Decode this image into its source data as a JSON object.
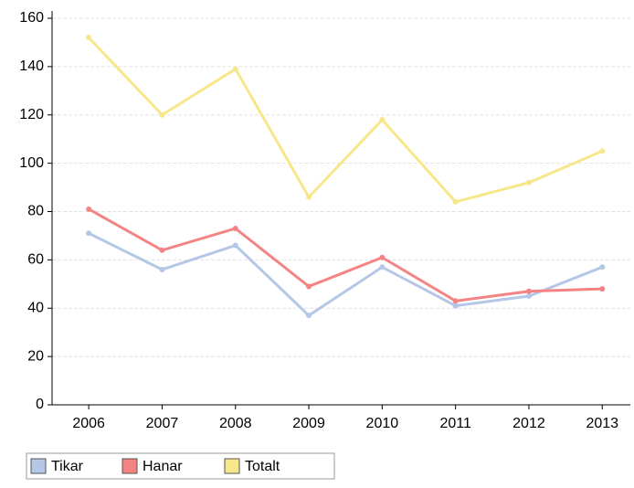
{
  "chart_data": {
    "type": "line",
    "categories": [
      "2006",
      "2007",
      "2008",
      "2009",
      "2010",
      "2011",
      "2012",
      "2013"
    ],
    "series": [
      {
        "name": "Tikar",
        "color": "#b4c7e7",
        "values": [
          71,
          56,
          66,
          37,
          57,
          41,
          45,
          57
        ]
      },
      {
        "name": "Hanar",
        "color": "#f48484",
        "values": [
          81,
          64,
          73,
          49,
          61,
          43,
          47,
          48
        ]
      },
      {
        "name": "Totalt",
        "color": "#f8e68a",
        "values": [
          152,
          120,
          139,
          86,
          118,
          84,
          92,
          105
        ]
      }
    ],
    "ylim": [
      0,
      160
    ],
    "yticks": [
      0,
      20,
      40,
      60,
      80,
      100,
      120,
      140,
      160
    ],
    "grid": true,
    "legend": "bottom-left"
  }
}
